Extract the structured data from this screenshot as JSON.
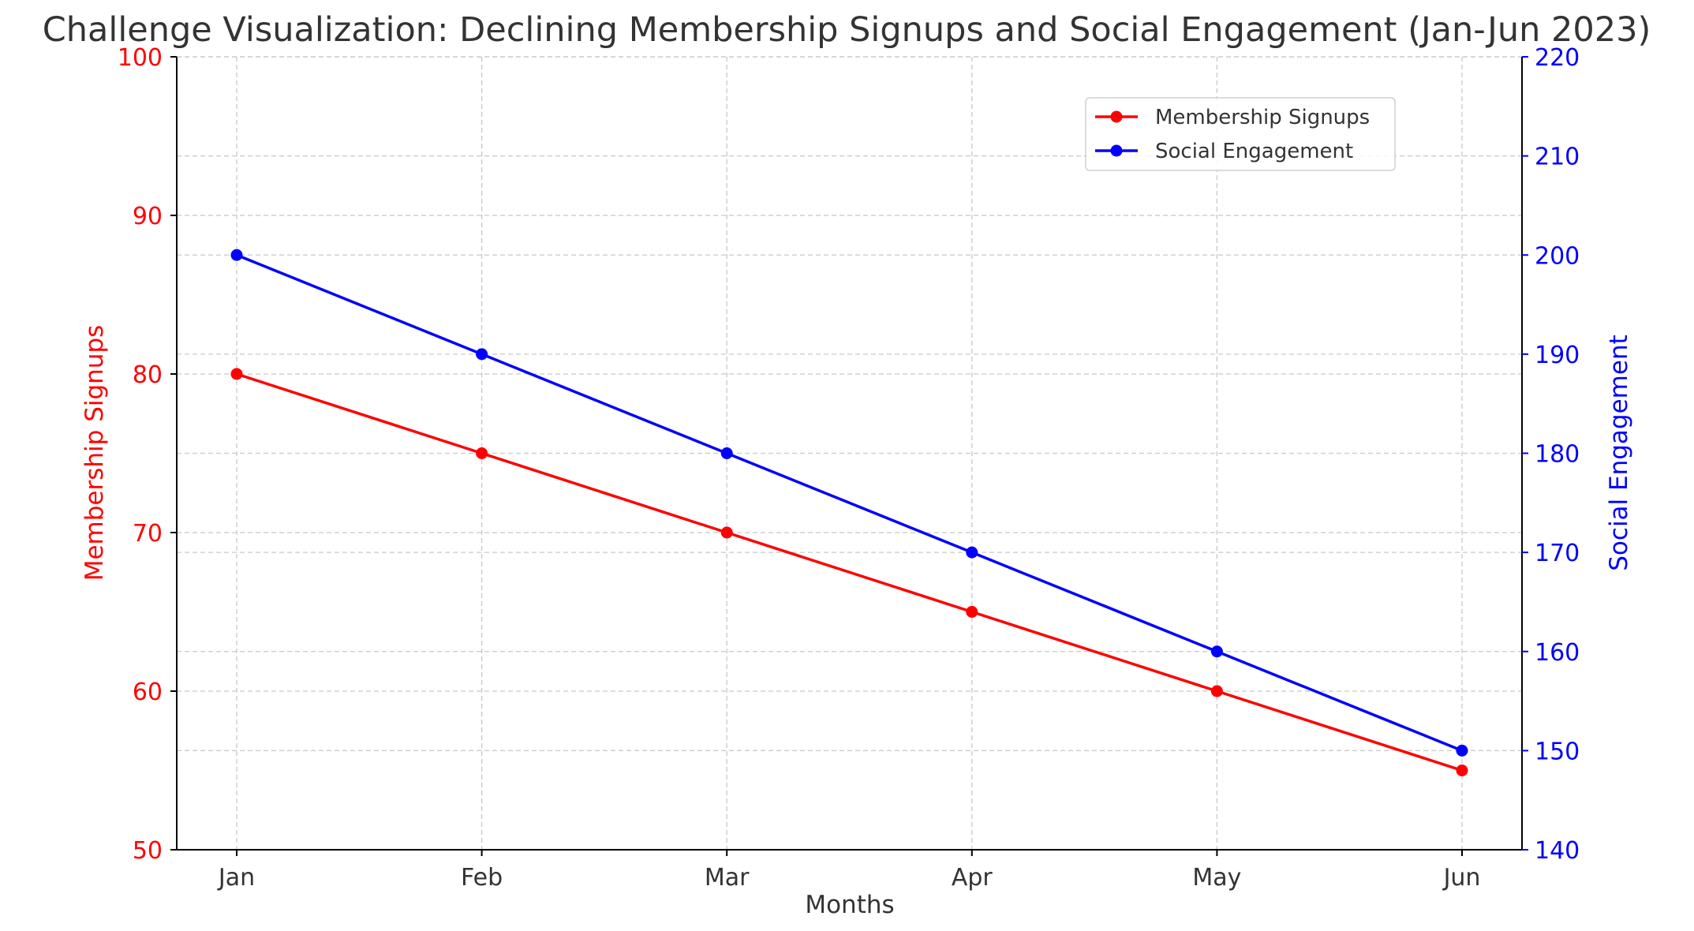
{
  "chart_data": {
    "type": "line",
    "title": "Challenge Visualization: Declining Membership Signups and Social Engagement (Jan-Jun 2023)",
    "xlabel": "Months",
    "categories": [
      "Jan",
      "Feb",
      "Mar",
      "Apr",
      "May",
      "Jun"
    ],
    "y_left": {
      "label": "Membership Signups",
      "color": "#ff0000",
      "range": [
        50,
        100
      ],
      "ticks": [
        50,
        60,
        70,
        80,
        90,
        100
      ]
    },
    "y_right": {
      "label": "Social Engagement",
      "color": "#0000ff",
      "range": [
        140,
        220
      ],
      "ticks": [
        140,
        150,
        160,
        170,
        180,
        190,
        200,
        210,
        220
      ]
    },
    "series": [
      {
        "name": "Membership Signups",
        "axis": "left",
        "color": "#ff0000",
        "values": [
          80,
          75,
          70,
          65,
          60,
          55
        ]
      },
      {
        "name": "Social Engagement",
        "axis": "right",
        "color": "#0000ff",
        "values": [
          200,
          190,
          180,
          170,
          160,
          150
        ]
      }
    ],
    "grid": true,
    "grid_style": "dashed",
    "legend_position": "top-right"
  }
}
